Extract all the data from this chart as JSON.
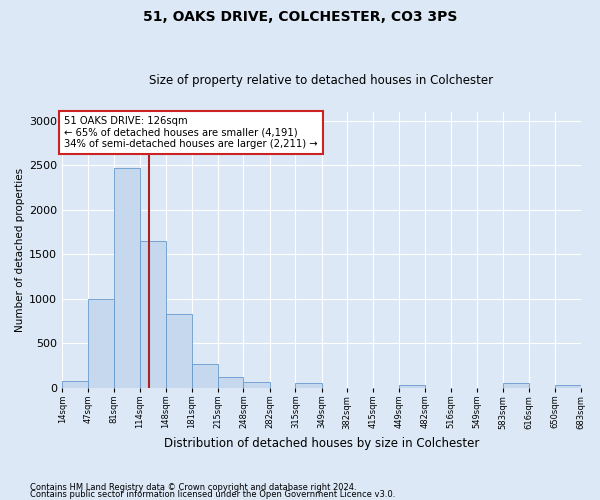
{
  "title1": "51, OAKS DRIVE, COLCHESTER, CO3 3PS",
  "title2": "Size of property relative to detached houses in Colchester",
  "xlabel": "Distribution of detached houses by size in Colchester",
  "ylabel": "Number of detached properties",
  "bar_left_edges": [
    14,
    47,
    81,
    114,
    148,
    181,
    215,
    248,
    282,
    315,
    349,
    382,
    415,
    449,
    482,
    516,
    549,
    583,
    616,
    650
  ],
  "bar_right_edges": [
    47,
    81,
    114,
    148,
    181,
    215,
    248,
    282,
    315,
    349,
    382,
    415,
    449,
    482,
    516,
    549,
    583,
    616,
    650,
    683
  ],
  "bar_heights": [
    75,
    1000,
    2470,
    1650,
    830,
    270,
    125,
    60,
    0,
    50,
    0,
    0,
    0,
    30,
    0,
    0,
    0,
    50,
    0,
    30
  ],
  "property_size": 126,
  "bar_color": "#c5d8ee",
  "bar_edge_color": "#6699cc",
  "vline_color": "#aa2222",
  "annotation_text": "51 OAKS DRIVE: 126sqm\n← 65% of detached houses are smaller (4,191)\n34% of semi-detached houses are larger (2,211) →",
  "annotation_box_edgecolor": "#cc2222",
  "ylim": [
    0,
    3100
  ],
  "yticks": [
    0,
    500,
    1000,
    1500,
    2000,
    2500,
    3000
  ],
  "xtick_labels": [
    "14sqm",
    "47sqm",
    "81sqm",
    "114sqm",
    "148sqm",
    "181sqm",
    "215sqm",
    "248sqm",
    "282sqm",
    "315sqm",
    "349sqm",
    "382sqm",
    "415sqm",
    "449sqm",
    "482sqm",
    "516sqm",
    "549sqm",
    "583sqm",
    "616sqm",
    "650sqm",
    "683sqm"
  ],
  "footer1": "Contains HM Land Registry data © Crown copyright and database right 2024.",
  "footer2": "Contains public sector information licensed under the Open Government Licence v3.0.",
  "bg_color": "#dce8f5",
  "plot_bg_color": "#dce8f5"
}
